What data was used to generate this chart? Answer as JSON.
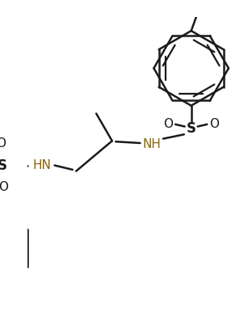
{
  "bg_color": "#ffffff",
  "line_color": "#1a1a1a",
  "nh_color": "#8B6400",
  "lw": 1.8,
  "fig_width": 3.07,
  "fig_height": 3.86,
  "dpi": 100,
  "xlim": [
    0,
    307
  ],
  "ylim": [
    0,
    386
  ]
}
